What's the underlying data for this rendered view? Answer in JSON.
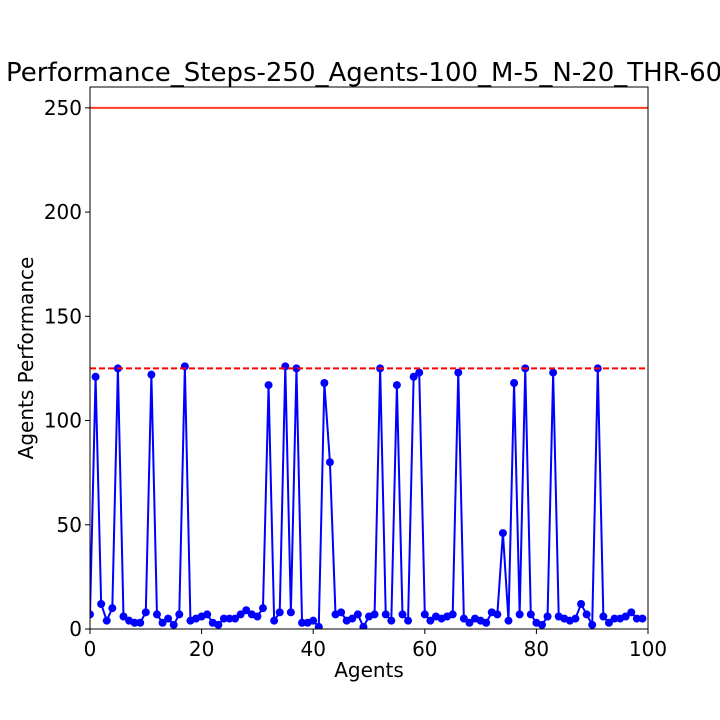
{
  "chart_data": {
    "type": "line",
    "title": "Performance_Steps-250_Agents-100_M-5_N-20_THR-60",
    "xlabel": "Agents",
    "ylabel": "Agents Performance",
    "xlim": [
      0,
      100
    ],
    "ylim": [
      0,
      260
    ],
    "xticks": [
      0,
      20,
      40,
      60,
      80,
      100
    ],
    "yticks": [
      0,
      50,
      100,
      150,
      200,
      250
    ],
    "grid": false,
    "series": [
      {
        "kind": "line-markers",
        "color": "#0000ff",
        "x": [
          0,
          1,
          2,
          3,
          4,
          5,
          6,
          7,
          8,
          9,
          10,
          11,
          12,
          13,
          14,
          15,
          16,
          17,
          18,
          19,
          20,
          21,
          22,
          23,
          24,
          25,
          26,
          27,
          28,
          29,
          30,
          31,
          32,
          33,
          34,
          35,
          36,
          37,
          38,
          39,
          40,
          41,
          42,
          43,
          44,
          45,
          46,
          47,
          48,
          49,
          50,
          51,
          52,
          53,
          54,
          55,
          56,
          57,
          58,
          59,
          60,
          61,
          62,
          63,
          64,
          65,
          66,
          67,
          68,
          69,
          70,
          71,
          72,
          73,
          74,
          75,
          76,
          77,
          78,
          79,
          80,
          81,
          82,
          83,
          84,
          85,
          86,
          87,
          88,
          89,
          90,
          91,
          92,
          93,
          94,
          95,
          96,
          97,
          98,
          99
        ],
        "y": [
          7,
          121,
          12,
          4,
          10,
          125,
          6,
          4,
          3,
          3,
          8,
          122,
          7,
          3,
          5,
          2,
          7,
          126,
          4,
          5,
          6,
          7,
          3,
          2,
          5,
          5,
          5,
          7,
          9,
          7,
          6,
          10,
          117,
          4,
          8,
          126,
          8,
          125,
          3,
          3,
          4,
          1,
          118,
          80,
          7,
          8,
          4,
          5,
          7,
          1,
          6,
          7,
          125,
          7,
          4,
          117,
          7,
          4,
          121,
          123,
          7,
          4,
          6,
          5,
          6,
          7,
          123,
          5,
          3,
          5,
          4,
          3,
          8,
          7,
          46,
          4,
          118,
          7,
          125,
          7,
          3,
          2,
          6,
          123,
          6,
          5,
          4,
          5,
          12,
          7,
          2,
          125,
          6,
          3,
          5,
          5,
          6,
          8,
          5,
          5
        ]
      },
      {
        "kind": "hline",
        "style": "solid",
        "color": "#ff3b1f",
        "y": 250
      },
      {
        "kind": "hline",
        "style": "dashed",
        "color": "#ff0000",
        "y": 125
      }
    ]
  }
}
